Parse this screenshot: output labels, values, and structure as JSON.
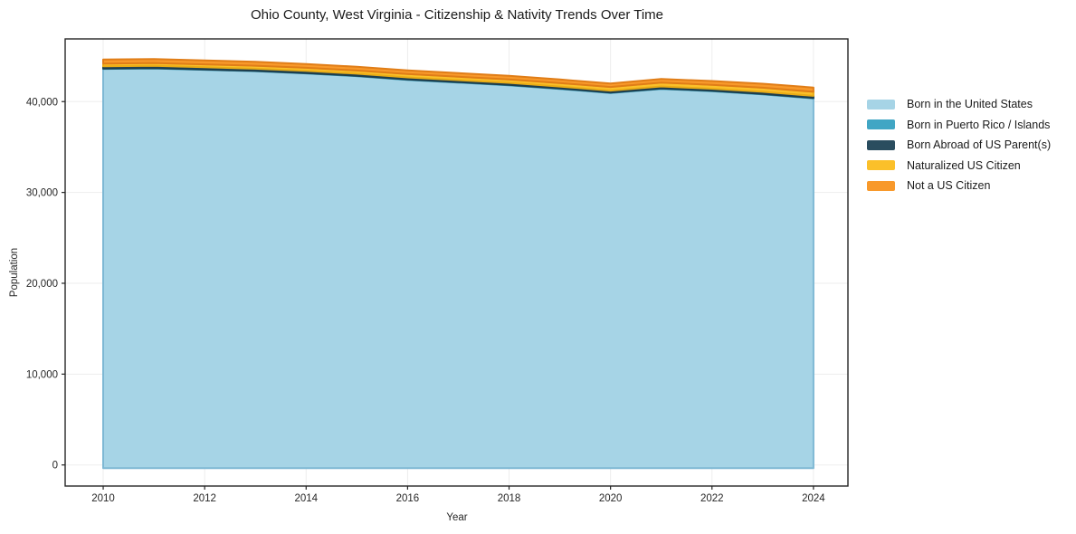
{
  "chart_data": {
    "type": "area",
    "stacked": true,
    "title": "Ohio County, West Virginia - Citizenship & Nativity Trends Over Time",
    "xlabel": "Year",
    "ylabel": "Population",
    "x": [
      2010,
      2011,
      2012,
      2013,
      2014,
      2015,
      2016,
      2017,
      2018,
      2019,
      2020,
      2021,
      2022,
      2023,
      2024
    ],
    "series": [
      {
        "name": "Born in the United States",
        "color": "#A6D4E6",
        "edge": "#7EB8D4",
        "values": [
          43600,
          43650,
          43500,
          43350,
          43100,
          42800,
          42400,
          42100,
          41800,
          41400,
          40950,
          41400,
          41150,
          40800,
          40350
        ]
      },
      {
        "name": "Born in Puerto Rico / Islands",
        "color": "#41A6C4",
        "edge": "#2F93B0",
        "values": [
          30,
          30,
          35,
          35,
          40,
          40,
          40,
          45,
          45,
          45,
          50,
          50,
          50,
          55,
          55
        ]
      },
      {
        "name": "Born Abroad of US Parent(s)",
        "color": "#2A4D5F",
        "edge": "#1E3D4C",
        "values": [
          250,
          260,
          250,
          240,
          240,
          230,
          230,
          220,
          220,
          210,
          210,
          220,
          220,
          230,
          230
        ]
      },
      {
        "name": "Naturalized US Citizen",
        "color": "#FBC02A",
        "edge": "#EAAC15",
        "values": [
          300,
          310,
          320,
          330,
          340,
          350,
          360,
          370,
          380,
          390,
          400,
          420,
          430,
          440,
          450
        ]
      },
      {
        "name": "Not a US Citizen",
        "color": "#F8992B",
        "edge": "#E07D17",
        "values": [
          450,
          440,
          430,
          420,
          420,
          410,
          400,
          400,
          390,
          390,
          380,
          400,
          420,
          440,
          460
        ]
      }
    ],
    "xlim": [
      2009.25,
      2024.68
    ],
    "ylim": [
      -2320,
      46900
    ],
    "xticks": [
      {
        "value": 2010,
        "label": "2010"
      },
      {
        "value": 2012,
        "label": "2012"
      },
      {
        "value": 2014,
        "label": "2014"
      },
      {
        "value": 2016,
        "label": "2016"
      },
      {
        "value": 2018,
        "label": "2018"
      },
      {
        "value": 2020,
        "label": "2020"
      },
      {
        "value": 2022,
        "label": "2022"
      },
      {
        "value": 2024,
        "label": "2024"
      }
    ],
    "yticks": [
      {
        "value": 0,
        "label": "0"
      },
      {
        "value": 10000,
        "label": "10,000"
      },
      {
        "value": 20000,
        "label": "20,000"
      },
      {
        "value": 30000,
        "label": "30,000"
      },
      {
        "value": 40000,
        "label": "40,000"
      }
    ],
    "grid": true,
    "legend_position": "right",
    "colors": {
      "background": "#ffffff",
      "gridline": "#ededed",
      "spine": "#262626",
      "tick_text": "#262626",
      "title_text": "#1a1a1a"
    }
  }
}
